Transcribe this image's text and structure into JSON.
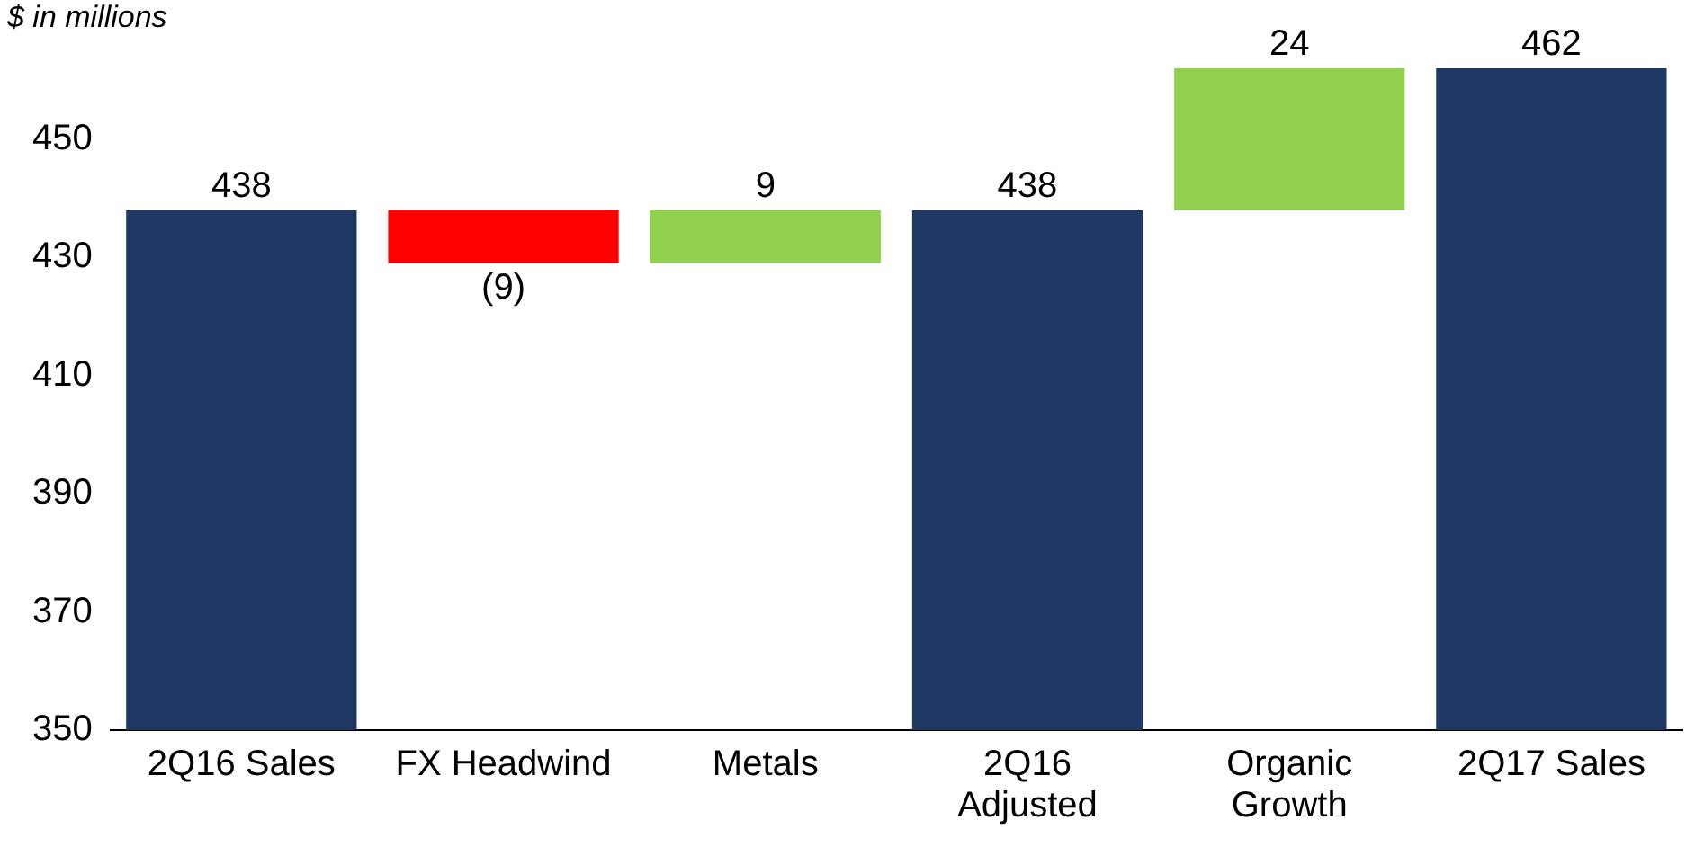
{
  "chart_data": {
    "type": "bar",
    "ylabel": "$ in millions",
    "categories": [
      "2Q16 Sales",
      "FX Headwind",
      "Metals",
      "2Q16 Adjusted",
      "Organic Growth",
      "2Q17 Sales"
    ],
    "values": [
      438,
      -9,
      9,
      438,
      24,
      462
    ],
    "base": [
      null,
      438,
      429,
      null,
      438,
      null
    ],
    "colors": [
      "#203864",
      "#ff0000",
      "#92d050",
      "#203864",
      "#92d050",
      "#203864"
    ],
    "value_labels": [
      "438",
      "(9)",
      "9",
      "438",
      "24",
      "462"
    ],
    "ylim": [
      350,
      462
    ],
    "yticks": [
      350,
      370,
      390,
      410,
      430,
      450
    ],
    "grid": false,
    "legend": false
  }
}
